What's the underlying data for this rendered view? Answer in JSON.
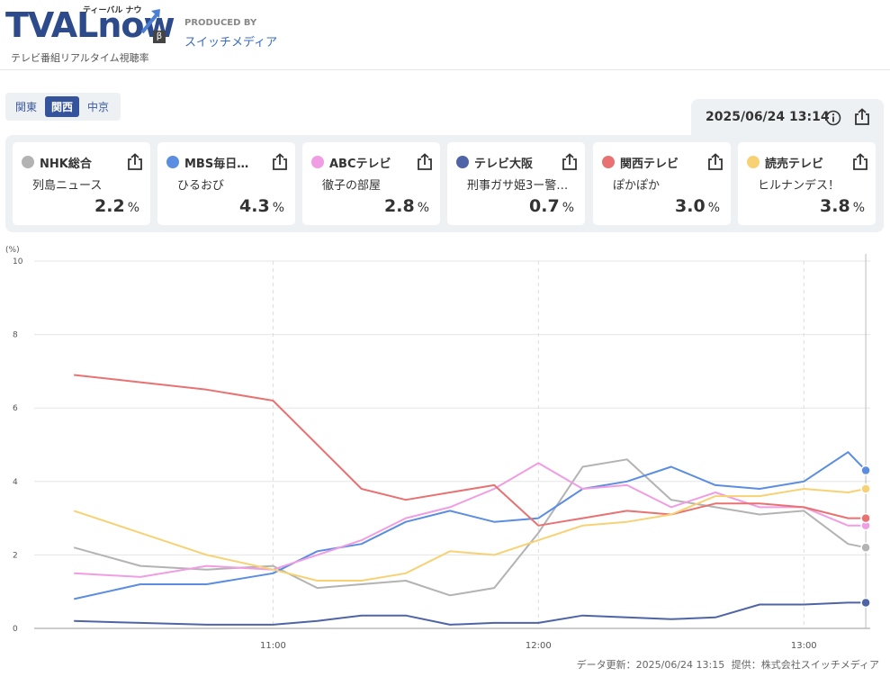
{
  "header": {
    "logo": "TVALnow",
    "logo_kana": "ティーバル ナウ",
    "logo_beta": "β",
    "tagline": "テレビ番組リアルタイム視聴率",
    "produced_by_label": "PRODUCED BY",
    "producer": "スイッチメディア"
  },
  "regions": [
    {
      "label": "関東",
      "active": false
    },
    {
      "label": "関西",
      "active": true
    },
    {
      "label": "中京",
      "active": false
    }
  ],
  "datetime": "2025/06/24 13:14",
  "channels": [
    {
      "name": "NHK総合",
      "program": "列島ニュース",
      "rating": "2.2",
      "unit": "%",
      "color": "#b3b3b3"
    },
    {
      "name": "MBS毎日…",
      "program": "ひるおび",
      "rating": "4.3",
      "unit": "%",
      "color": "#5b8de0"
    },
    {
      "name": "ABCテレビ",
      "program": "徹子の部屋",
      "rating": "2.8",
      "unit": "%",
      "color": "#f09de3"
    },
    {
      "name": "テレビ大阪",
      "program": "刑事ガサ姫3ー警…",
      "rating": "0.7",
      "unit": "%",
      "color": "#4f64a6"
    },
    {
      "name": "関西テレビ",
      "program": "ぽかぽか",
      "rating": "3.0",
      "unit": "%",
      "color": "#e87272"
    },
    {
      "name": "読売テレビ",
      "program": "ヒルナンデス！",
      "rating": "3.8",
      "unit": "%",
      "color": "#f7d274"
    }
  ],
  "footer": {
    "updated": "データ更新：2025/06/24 13:15",
    "provider": "提供：株式会社スイッチメディア"
  },
  "chart_data": {
    "type": "line",
    "ylabel": "(%)",
    "ylim": [
      0,
      10
    ],
    "yticks": [
      "0",
      "2",
      "4",
      "6",
      "8",
      "10"
    ],
    "xticks": [
      "11:00",
      "12:00",
      "13:00"
    ],
    "xlim_minutes": [
      10.1,
      13.25
    ],
    "x": [
      "10:15",
      "10:30",
      "10:45",
      "11:00",
      "11:10",
      "11:20",
      "11:30",
      "11:40",
      "11:50",
      "12:00",
      "12:10",
      "12:20",
      "12:30",
      "12:40",
      "12:50",
      "13:00",
      "13:10",
      "13:14"
    ],
    "series": [
      {
        "name": "NHK総合",
        "color": "#b3b3b3",
        "values": [
          2.2,
          1.7,
          1.6,
          1.7,
          1.1,
          1.2,
          1.3,
          0.9,
          1.1,
          2.6,
          4.4,
          4.6,
          3.5,
          3.3,
          3.1,
          3.2,
          2.3,
          2.2
        ]
      },
      {
        "name": "MBS毎日",
        "color": "#5b8de0",
        "values": [
          0.8,
          1.2,
          1.2,
          1.5,
          2.1,
          2.3,
          2.9,
          3.2,
          2.9,
          3.0,
          3.8,
          4.0,
          4.4,
          3.9,
          3.8,
          4.0,
          4.8,
          4.3
        ]
      },
      {
        "name": "ABCテレビ",
        "color": "#f09de3",
        "values": [
          1.5,
          1.4,
          1.7,
          1.6,
          2.0,
          2.4,
          3.0,
          3.3,
          3.8,
          4.5,
          3.8,
          3.9,
          3.3,
          3.7,
          3.3,
          3.3,
          2.8,
          2.8
        ]
      },
      {
        "name": "テレビ大阪",
        "color": "#4f64a6",
        "values": [
          0.2,
          0.15,
          0.1,
          0.1,
          0.2,
          0.35,
          0.35,
          0.1,
          0.15,
          0.15,
          0.35,
          0.3,
          0.25,
          0.3,
          0.65,
          0.65,
          0.7,
          0.7
        ]
      },
      {
        "name": "関西テレビ",
        "color": "#e87272",
        "values": [
          6.9,
          6.7,
          6.5,
          6.2,
          5.0,
          3.8,
          3.5,
          3.7,
          3.9,
          2.8,
          3.0,
          3.2,
          3.1,
          3.4,
          3.4,
          3.3,
          3.0,
          3.0
        ]
      },
      {
        "name": "読売テレビ",
        "color": "#f7d274",
        "values": [
          3.2,
          2.6,
          2.0,
          1.6,
          1.3,
          1.3,
          1.5,
          2.1,
          2.0,
          2.4,
          2.8,
          2.9,
          3.1,
          3.6,
          3.6,
          3.8,
          3.7,
          3.8
        ]
      }
    ]
  }
}
